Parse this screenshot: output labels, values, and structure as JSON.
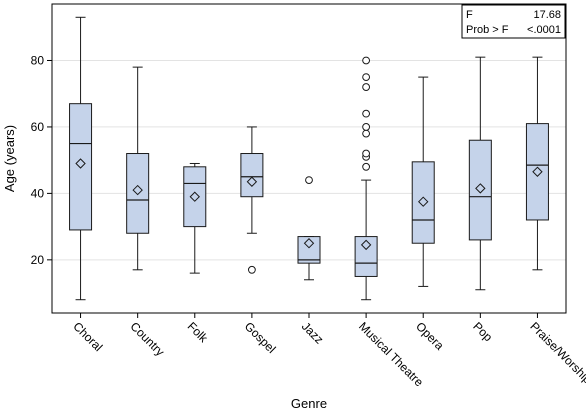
{
  "chart_data": {
    "type": "box",
    "xlabel": "Genre",
    "ylabel": "Age (years)",
    "ylim": [
      4,
      97
    ],
    "yticks": [
      20,
      40,
      60,
      80
    ],
    "grid": true,
    "categories": [
      "Choral",
      "Country",
      "Folk",
      "Gospel",
      "Jazz",
      "Musical Theatre",
      "Opera",
      "Pop",
      "Praise/Worship"
    ],
    "boxes": [
      {
        "whisker_low": 8,
        "q1": 29,
        "median": 55,
        "q3": 67,
        "whisker_high": 93,
        "mean": 49,
        "outliers": []
      },
      {
        "whisker_low": 17,
        "q1": 28,
        "median": 38,
        "q3": 52,
        "whisker_high": 78,
        "mean": 41,
        "outliers": []
      },
      {
        "whisker_low": 16,
        "q1": 30,
        "median": 43,
        "q3": 48,
        "whisker_high": 49,
        "mean": 39,
        "outliers": []
      },
      {
        "whisker_low": 28,
        "q1": 39,
        "median": 45,
        "q3": 52,
        "whisker_high": 60,
        "mean": 43.5,
        "outliers": [
          17
        ]
      },
      {
        "whisker_low": 14,
        "q1": 19,
        "median": 20,
        "q3": 27,
        "whisker_high": 27,
        "mean": 25,
        "outliers": [
          44
        ]
      },
      {
        "whisker_low": 8,
        "q1": 15,
        "median": 19,
        "q3": 27,
        "whisker_high": 44,
        "mean": 24.5,
        "outliers": [
          48,
          51,
          52,
          58,
          60,
          64,
          72,
          75,
          80
        ]
      },
      {
        "whisker_low": 12,
        "q1": 25,
        "median": 32,
        "q3": 49.5,
        "whisker_high": 75,
        "mean": 37.5,
        "outliers": []
      },
      {
        "whisker_low": 11,
        "q1": 26,
        "median": 39,
        "q3": 56,
        "whisker_high": 81,
        "mean": 41.5,
        "outliers": []
      },
      {
        "whisker_low": 17,
        "q1": 32,
        "median": 48.5,
        "q3": 61,
        "whisker_high": 81,
        "mean": 46.5,
        "outliers": []
      }
    ],
    "inset": {
      "rows": [
        {
          "label": "F",
          "value": "17.68"
        },
        {
          "label": "Prob > F",
          "value": "<.0001"
        }
      ],
      "placement": "top-right"
    },
    "colors": {
      "box_fill": "#c5d3ea",
      "box_stroke": "#1a1a1a",
      "grid": "#e3e3e3"
    }
  }
}
